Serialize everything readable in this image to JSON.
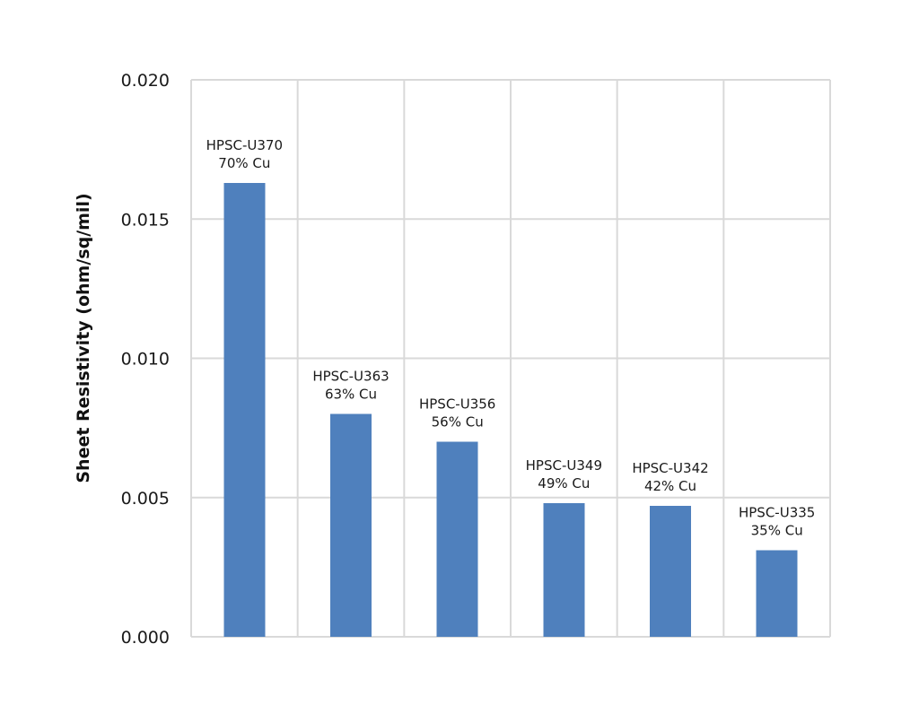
{
  "chart_data": {
    "type": "bar",
    "title": "",
    "xlabel": "",
    "ylabel": "Sheet Resistivity (ohm/sq/mil)",
    "ylim": [
      0,
      0.02
    ],
    "yticks": [
      "0.000",
      "0.005",
      "0.010",
      "0.015",
      "0.020"
    ],
    "grid": true,
    "bar_color": "#4f80bd",
    "categories": [
      {
        "name": "HPSC-U370",
        "label": "70% Cu",
        "value": 0.0163
      },
      {
        "name": "HPSC-U363",
        "label": "63% Cu",
        "value": 0.008
      },
      {
        "name": "HPSC-U356",
        "label": "56% Cu",
        "value": 0.007
      },
      {
        "name": "HPSC-U349",
        "label": "49% Cu",
        "value": 0.0048
      },
      {
        "name": "HPSC-U342",
        "label": "42% Cu",
        "value": 0.0047
      },
      {
        "name": "HPSC-U335",
        "label": "35% Cu",
        "value": 0.0031
      }
    ]
  }
}
